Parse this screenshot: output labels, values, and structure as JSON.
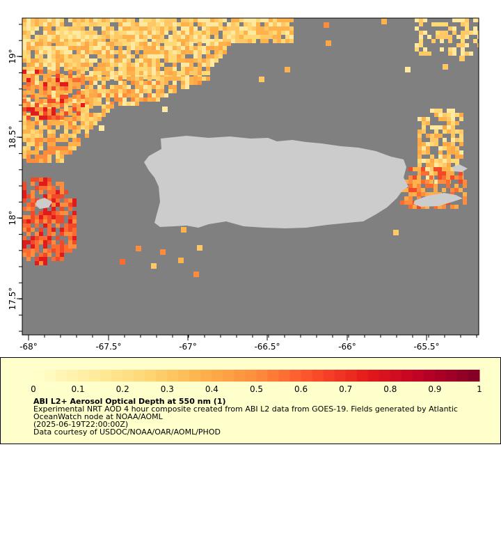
{
  "map": {
    "x_ticks": [
      "-68°",
      "-67.5°",
      "-67°",
      "-66.5°",
      "-66°",
      "-65.5°"
    ],
    "y_ticks": [
      "19°",
      "18.5°",
      "18°",
      "17.5°"
    ],
    "colors": {
      "ocean": "#808080",
      "land": "#cccccc"
    }
  },
  "legend": {
    "tick_labels": [
      "0",
      "0.1",
      "0.2",
      "0.3",
      "0.4",
      "0.5",
      "0.6",
      "0.7",
      "0.8",
      "0.9",
      "1"
    ],
    "colormap": [
      "#ffffcc",
      "#ffeda0",
      "#fed976",
      "#feb24c",
      "#fd8d3c",
      "#fc4e2a",
      "#e31a1c",
      "#bd0026",
      "#800026"
    ],
    "title": "ABI L2+ Aerosol Optical Depth at 550 nm (1)",
    "description_1": "Experimental NRT AOD 4 hour composite created from ABI L2 data from GOES-19. Fields generated by Atlantic",
    "description_2": "OceanWatch node at NOAA/AOML",
    "date": "(2025-06-19T22:00:00Z)",
    "credit": "Data courtesy of USDOC/NOAA/OAR/AOML/PHOD"
  }
}
